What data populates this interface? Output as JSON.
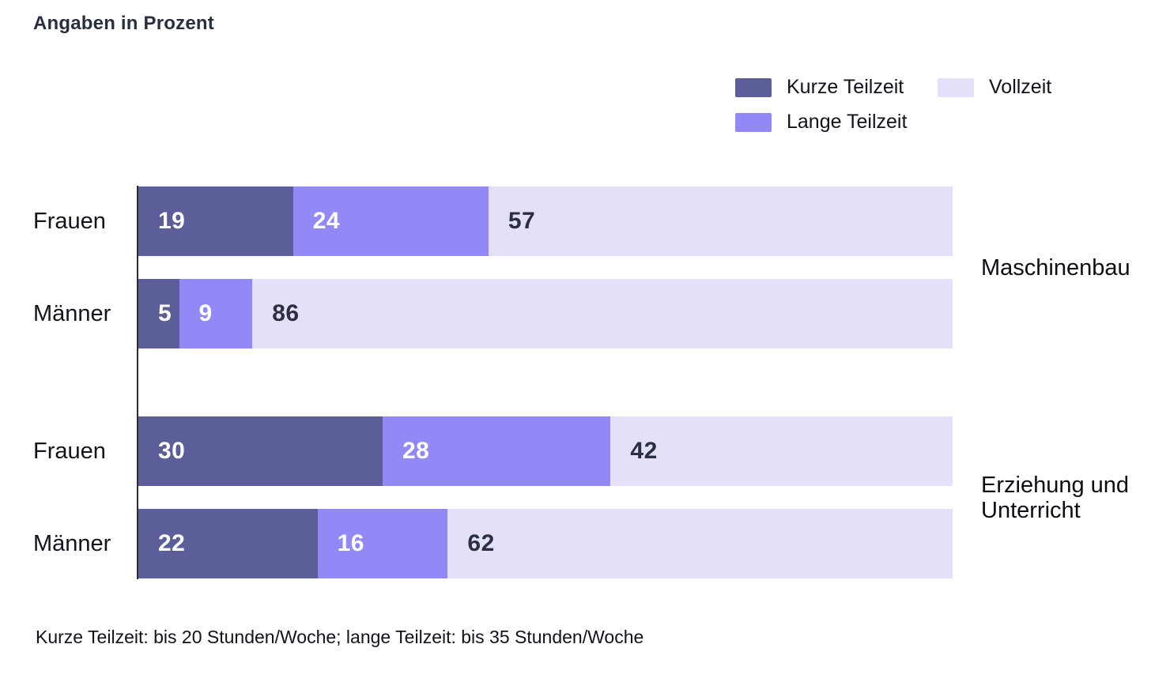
{
  "chart_data": {
    "type": "bar",
    "orientation": "horizontal",
    "stacked": true,
    "title": "Angaben in Prozent",
    "unit": "Prozent",
    "xlim": [
      0,
      100
    ],
    "grid": false,
    "legend": {
      "position": "top-right",
      "entries": [
        {
          "label": "Kurze Teilzeit",
          "color": "#5b5e99",
          "value_text_color": "#ffffff"
        },
        {
          "label": "Lange Teilzeit",
          "color": "#9289f7",
          "value_text_color": "#ffffff"
        },
        {
          "label": "Vollzeit",
          "color": "#e5e0f9",
          "value_text_color": "#2b3040"
        }
      ]
    },
    "series_names": [
      "Kurze Teilzeit",
      "Lange Teilzeit",
      "Vollzeit"
    ],
    "groups": [
      {
        "label": "Maschinenbau",
        "rows": [
          {
            "category": "Frauen",
            "values": [
              19,
              24,
              57
            ]
          },
          {
            "category": "Männer",
            "values": [
              5,
              9,
              86
            ]
          }
        ]
      },
      {
        "label": "Erziehung und Unterricht",
        "rows": [
          {
            "category": "Frauen",
            "values": [
              30,
              28,
              42
            ]
          },
          {
            "category": "Männer",
            "values": [
              22,
              16,
              62
            ]
          }
        ]
      }
    ],
    "footnote": "Kurze Teilzeit: bis 20 Stunden/Woche; lange Teilzeit: bis 35 Stunden/Woche"
  }
}
